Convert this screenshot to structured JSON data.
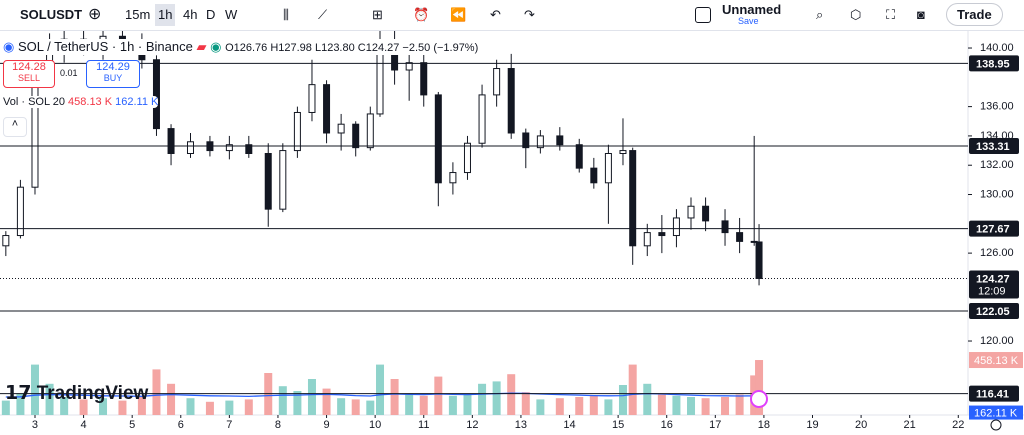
{
  "toolbar": {
    "symbol": "SOLUSDT",
    "intervals": [
      "15m",
      "1h",
      "4h",
      "D",
      "W"
    ],
    "layout_name": "Unnamed",
    "save": "Save",
    "trade": "Trade"
  },
  "legend": {
    "title": "SOL / TetherUS · 1h · Binance",
    "ohlc": "O126.76 H127.98 L123.80 C124.27 −2.50 (−1.97%)"
  },
  "order": {
    "sell_price": 124.28,
    "sell": "SELL",
    "spread": 0.01,
    "buy_price": 124.29,
    "buy": "BUY"
  },
  "logo": "TradingView",
  "chart_data": {
    "type": "candlestick",
    "x": [
      2.4,
      2.7,
      3.0,
      3.3,
      3.6,
      4.0,
      4.4,
      4.8,
      5.2,
      5.5,
      5.8,
      6.2,
      6.6,
      7.0,
      7.4,
      7.8,
      8.1,
      8.4,
      8.7,
      9.0,
      9.3,
      9.6,
      9.9,
      10.1,
      10.4,
      10.7,
      11.0,
      11.3,
      11.6,
      11.9,
      12.2,
      12.5,
      12.8,
      13.1,
      13.4,
      13.8,
      14.2,
      14.5,
      14.8,
      15.1,
      15.3,
      15.6,
      15.9,
      16.2,
      16.5,
      16.8,
      17.2,
      17.5,
      17.8,
      17.9
    ],
    "open": [
      126.5,
      127.2,
      130.5,
      138.5,
      140.2,
      140.6,
      140,
      140.8,
      140.2,
      139.2,
      134.5,
      132.8,
      133.6,
      133,
      133.4,
      132.8,
      129,
      133,
      135.6,
      137.5,
      134.2,
      134.8,
      133.2,
      135.5,
      140.5,
      138.5,
      139,
      136.8,
      130.8,
      131.5,
      133.5,
      136.8,
      138.6,
      134.2,
      133.2,
      134,
      133.4,
      131.8,
      130.8,
      132.8,
      133,
      126.5,
      127.4,
      127.2,
      128.4,
      129.2,
      128.2,
      127.4,
      126.8,
      126.76
    ],
    "high": [
      127.5,
      131,
      139,
      141,
      141.2,
      141.2,
      141.2,
      141.2,
      141,
      139.5,
      134.8,
      134.2,
      134,
      134,
      134,
      133.5,
      133.5,
      136,
      139.2,
      137.8,
      135.5,
      135,
      136,
      141.2,
      141.2,
      140,
      139.8,
      137,
      132.2,
      134,
      137.5,
      139.2,
      139.6,
      134.5,
      134.4,
      134.6,
      133.8,
      132.5,
      133.4,
      135.2,
      133.2,
      128,
      128.6,
      129,
      129.8,
      129.8,
      129,
      128.4,
      134,
      127.98
    ],
    "low": [
      125.8,
      127,
      130,
      137.5,
      139,
      139.5,
      139.2,
      139.6,
      138.6,
      134,
      132,
      132.5,
      132.6,
      132.4,
      132.5,
      127.8,
      128.8,
      132.5,
      135,
      133.5,
      133,
      132.6,
      133,
      135.3,
      137.5,
      136.4,
      136,
      129.2,
      130,
      131,
      133.2,
      136,
      133.8,
      131.8,
      132.8,
      133,
      131.5,
      130.4,
      128,
      132,
      125.2,
      125.8,
      126,
      126.4,
      127.6,
      127.5,
      126.5,
      126,
      126.5,
      123.8
    ],
    "close": [
      127.2,
      130.5,
      138.5,
      140.2,
      140.6,
      140,
      140.8,
      140.2,
      139.2,
      134.5,
      132.8,
      133.6,
      133,
      133.4,
      132.8,
      129,
      133,
      135.6,
      137.5,
      134.2,
      134.8,
      133.2,
      135.5,
      140.5,
      138.5,
      139,
      136.8,
      130.8,
      131.5,
      133.5,
      136.8,
      138.6,
      134.2,
      133.2,
      134,
      133.4,
      131.8,
      130.8,
      132.8,
      133,
      126.5,
      127.4,
      127.2,
      128.4,
      129.2,
      128.2,
      127.4,
      126.8,
      126.76,
      124.27
    ],
    "xlim": [
      2.28,
      22.2
    ],
    "xticks": [
      3,
      4,
      5,
      6,
      7,
      8,
      9,
      10,
      11,
      12,
      13,
      14,
      15,
      16,
      17,
      18,
      19,
      20,
      21,
      22
    ],
    "ylim": [
      114.95,
      141.23
    ],
    "yticks": [
      {
        "value": 140,
        "label": "140.00"
      },
      {
        "value": 136,
        "label": "136.00"
      },
      {
        "value": 134,
        "label": "134.00"
      },
      {
        "value": 132,
        "label": "132.00"
      },
      {
        "value": 130,
        "label": "130.00"
      },
      {
        "value": 126,
        "label": "126.00"
      },
      {
        "value": 120,
        "label": "120.00"
      }
    ],
    "hlines": [
      138.95,
      133.31,
      127.67,
      122.05,
      116.41
    ],
    "last_price": 124.27,
    "countdown": "12:09",
    "candle_color": "#131722",
    "up_color": "#8fd3cb",
    "down_color": "#f4a5a3",
    "volume": {
      "name": "Vol · SOL 20",
      "values": [
        120,
        180,
        420,
        260,
        150,
        130,
        140,
        120,
        160,
        380,
        260,
        140,
        110,
        120,
        130,
        350,
        240,
        200,
        300,
        220,
        140,
        130,
        120,
        420,
        300,
        180,
        160,
        320,
        160,
        170,
        260,
        280,
        340,
        190,
        130,
        140,
        150,
        160,
        130,
        250,
        420,
        260,
        170,
        160,
        150,
        140,
        150,
        170,
        330,
        458.13
      ],
      "ma": [
        150,
        152,
        165,
        170,
        168,
        165,
        160,
        158,
        156,
        165,
        170,
        165,
        160,
        158,
        155,
        162,
        165,
        166,
        170,
        172,
        168,
        162,
        158,
        168,
        175,
        172,
        170,
        175,
        172,
        170,
        174,
        178,
        182,
        180,
        175,
        170,
        166,
        162,
        160,
        162,
        172,
        178,
        175,
        170,
        166,
        162,
        160,
        158,
        160,
        162.11
      ],
      "value_label": "458.13 K",
      "ma_label": "162.11 K",
      "ma_color": "#2962ff"
    }
  }
}
